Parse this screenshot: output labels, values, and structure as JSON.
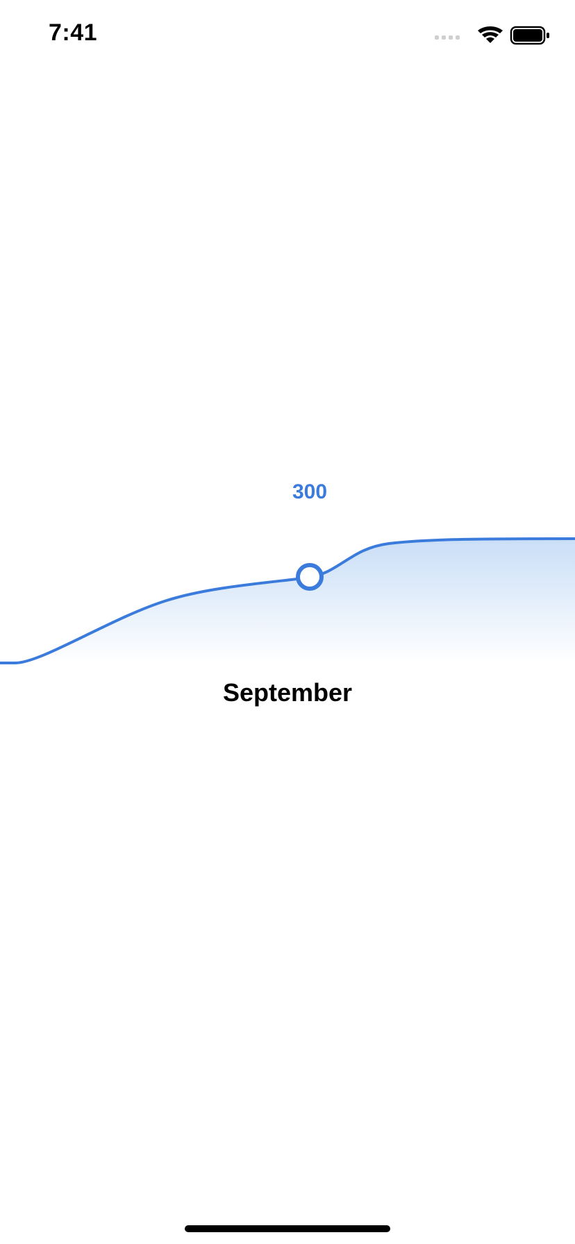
{
  "status_bar": {
    "time": "7:41",
    "icons": [
      "signal-icon",
      "wifi-icon",
      "battery-icon"
    ]
  },
  "chart": {
    "selected_value": "300",
    "selected_month": "September"
  },
  "colors": {
    "accent": "#3a7bdc",
    "fill_top": "#c9def7",
    "text": "#000000",
    "background": "#ffffff"
  },
  "chart_data": {
    "type": "area",
    "series": [
      {
        "values": [
          80,
          180,
          260,
          300,
          360,
          370
        ]
      }
    ],
    "selected_index": 3,
    "selected_value": 300,
    "selected_label": "September",
    "grid": false,
    "legend": "none"
  }
}
